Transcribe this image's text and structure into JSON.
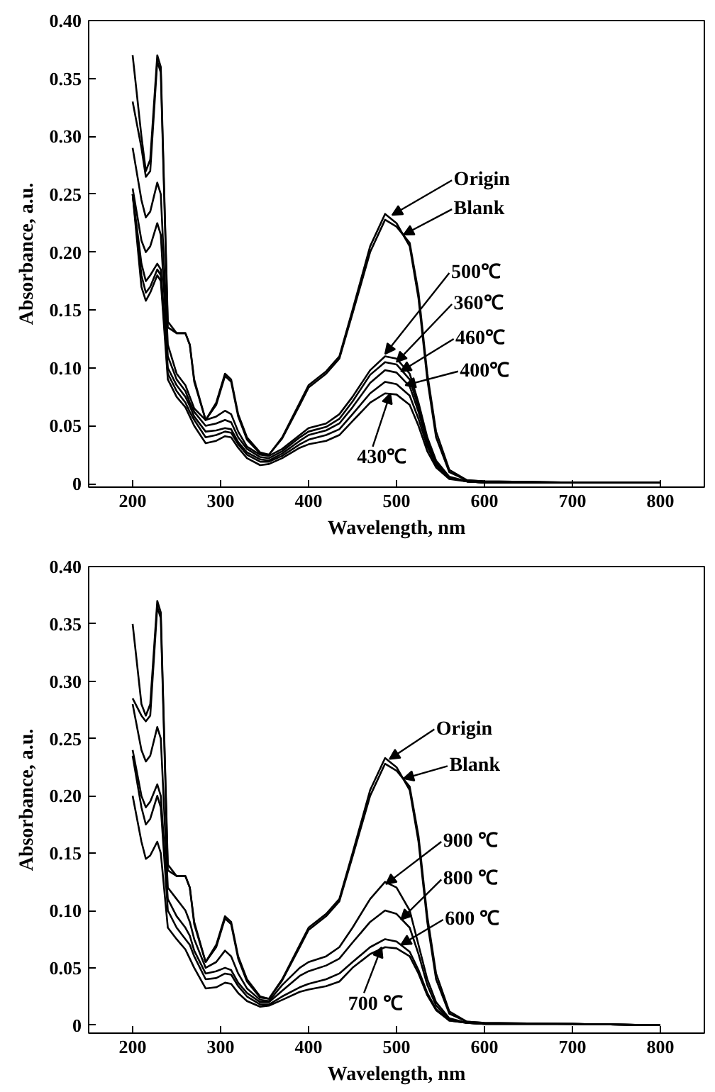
{
  "chart_data": [
    {
      "type": "line",
      "xlabel": "Wavelength, nm",
      "ylabel": "Absorbance, a.u.",
      "xlim": [
        150,
        850
      ],
      "ylim": [
        -0.003,
        0.4
      ],
      "xticks": [
        200,
        300,
        400,
        500,
        600,
        700,
        800
      ],
      "yticks": [
        0,
        0.05,
        {
          "value": 0.1,
          "label": "0.10"
        },
        0.15,
        {
          "value": 0.2,
          "label": "0.20"
        },
        0.25,
        {
          "value": 0.3,
          "label": "0.30"
        },
        0.35,
        {
          "value": 0.4,
          "label": "0.40"
        }
      ],
      "grid": false,
      "marker": "none",
      "line_style": "solid",
      "x": [
        200,
        210,
        215,
        220,
        228,
        232,
        240,
        250,
        260,
        265,
        270,
        283,
        295,
        305,
        312,
        320,
        330,
        345,
        355,
        370,
        390,
        400,
        420,
        435,
        450,
        470,
        487,
        500,
        515,
        525,
        535,
        545,
        560,
        580,
        600,
        700,
        800
      ],
      "series": [
        {
          "color": "#000000",
          "values": [
            0.37,
            0.3,
            0.27,
            0.28,
            0.37,
            0.36,
            0.14,
            0.13,
            0.13,
            0.12,
            0.09,
            0.055,
            0.07,
            0.095,
            0.09,
            0.06,
            0.04,
            0.027,
            0.025,
            0.04,
            0.07,
            0.085,
            0.097,
            0.11,
            0.15,
            0.205,
            0.233,
            0.225,
            0.205,
            0.16,
            0.09,
            0.04,
            0.01,
            0.003,
            0.002,
            0.001,
            0.001
          ]
        },
        {
          "color": "#000000",
          "values": [
            0.33,
            0.29,
            0.265,
            0.27,
            0.365,
            0.355,
            0.135,
            0.13,
            0.13,
            0.12,
            0.088,
            0.055,
            0.068,
            0.093,
            0.088,
            0.058,
            0.038,
            0.026,
            0.025,
            0.039,
            0.068,
            0.083,
            0.095,
            0.108,
            0.147,
            0.2,
            0.228,
            0.222,
            0.208,
            0.165,
            0.095,
            0.045,
            0.012,
            0.003,
            0.002,
            0.001,
            0.001
          ]
        },
        {
          "color": "#000000",
          "values": [
            0.29,
            0.245,
            0.23,
            0.235,
            0.26,
            0.25,
            0.12,
            0.095,
            0.085,
            0.075,
            0.065,
            0.055,
            0.058,
            0.063,
            0.06,
            0.045,
            0.032,
            0.025,
            0.024,
            0.03,
            0.042,
            0.048,
            0.052,
            0.06,
            0.075,
            0.098,
            0.11,
            0.108,
            0.095,
            0.07,
            0.04,
            0.02,
            0.006,
            0.002,
            0.001,
            0.001,
            0.001
          ]
        },
        {
          "color": "#000000",
          "values": [
            0.255,
            0.21,
            0.2,
            0.205,
            0.225,
            0.215,
            0.11,
            0.09,
            0.08,
            0.07,
            0.062,
            0.05,
            0.052,
            0.055,
            0.053,
            0.04,
            0.03,
            0.023,
            0.022,
            0.028,
            0.04,
            0.045,
            0.049,
            0.056,
            0.071,
            0.094,
            0.105,
            0.103,
            0.09,
            0.066,
            0.037,
            0.018,
            0.005,
            0.002,
            0.001,
            0.001,
            0.001
          ]
        },
        {
          "color": "#000000",
          "values": [
            0.25,
            0.19,
            0.175,
            0.18,
            0.19,
            0.185,
            0.1,
            0.085,
            0.075,
            0.067,
            0.058,
            0.045,
            0.046,
            0.048,
            0.047,
            0.036,
            0.027,
            0.021,
            0.02,
            0.026,
            0.037,
            0.042,
            0.046,
            0.052,
            0.066,
            0.087,
            0.098,
            0.096,
            0.084,
            0.062,
            0.035,
            0.017,
            0.005,
            0.002,
            0.001,
            0.001,
            0.001
          ]
        },
        {
          "color": "#000000",
          "values": [
            0.25,
            0.18,
            0.165,
            0.17,
            0.185,
            0.18,
            0.095,
            0.08,
            0.07,
            0.062,
            0.055,
            0.04,
            0.042,
            0.045,
            0.044,
            0.034,
            0.025,
            0.019,
            0.019,
            0.024,
            0.034,
            0.038,
            0.042,
            0.047,
            0.06,
            0.078,
            0.088,
            0.086,
            0.076,
            0.056,
            0.032,
            0.016,
            0.005,
            0.002,
            0.001,
            0.001,
            0.001
          ]
        },
        {
          "color": "#000000",
          "values": [
            0.25,
            0.17,
            0.158,
            0.165,
            0.18,
            0.175,
            0.09,
            0.075,
            0.066,
            0.058,
            0.05,
            0.035,
            0.037,
            0.041,
            0.04,
            0.031,
            0.022,
            0.016,
            0.017,
            0.022,
            0.031,
            0.034,
            0.037,
            0.042,
            0.054,
            0.07,
            0.078,
            0.077,
            0.068,
            0.05,
            0.028,
            0.014,
            0.004,
            0.002,
            0.001,
            0.001,
            0.001
          ]
        }
      ],
      "annotations": [
        {
          "text": "Origin",
          "x": 495,
          "y": 0.232
        },
        {
          "text": "Blank",
          "x": 508,
          "y": 0.215
        },
        {
          "text": "500℃",
          "x": 487,
          "y": 0.112
        },
        {
          "text": "360℃",
          "x": 500,
          "y": 0.105
        },
        {
          "text": "460℃",
          "x": 505,
          "y": 0.097
        },
        {
          "text": "400℃",
          "x": 510,
          "y": 0.085
        },
        {
          "text": "430℃",
          "x": 493,
          "y": 0.078
        }
      ]
    },
    {
      "type": "line",
      "xlabel": "Wavelength, nm",
      "ylabel": "Absorbance, a.u.",
      "xlim": [
        150,
        850
      ],
      "ylim": [
        -0.007,
        0.4
      ],
      "xticks": [
        200,
        300,
        400,
        500,
        600,
        700,
        800
      ],
      "yticks": [
        0,
        0.05,
        {
          "value": 0.1,
          "label": "0.10"
        },
        0.15,
        {
          "value": 0.2,
          "label": "0.20"
        },
        0.25,
        {
          "value": 0.3,
          "label": "0.30"
        },
        0.35,
        {
          "value": 0.4,
          "label": "0.40"
        }
      ],
      "grid": false,
      "marker": "none",
      "line_style": "solid",
      "x": [
        200,
        210,
        215,
        220,
        228,
        232,
        240,
        250,
        260,
        265,
        270,
        283,
        295,
        305,
        312,
        320,
        330,
        345,
        355,
        370,
        390,
        400,
        420,
        435,
        450,
        470,
        487,
        500,
        515,
        525,
        535,
        545,
        560,
        580,
        600,
        700,
        800
      ],
      "series": [
        {
          "color": "#000000",
          "values": [
            0.35,
            0.28,
            0.27,
            0.28,
            0.37,
            0.36,
            0.14,
            0.13,
            0.13,
            0.12,
            0.09,
            0.055,
            0.07,
            0.095,
            0.09,
            0.06,
            0.04,
            0.025,
            0.023,
            0.04,
            0.07,
            0.085,
            0.097,
            0.11,
            0.15,
            0.205,
            0.233,
            0.225,
            0.205,
            0.16,
            0.09,
            0.04,
            0.01,
            0.003,
            0.002,
            0.001,
            0.0
          ]
        },
        {
          "color": "#000000",
          "values": [
            0.285,
            0.27,
            0.265,
            0.27,
            0.365,
            0.355,
            0.135,
            0.13,
            0.13,
            0.12,
            0.088,
            0.055,
            0.068,
            0.093,
            0.088,
            0.058,
            0.038,
            0.024,
            0.023,
            0.039,
            0.068,
            0.083,
            0.095,
            0.108,
            0.147,
            0.2,
            0.228,
            0.222,
            0.208,
            0.165,
            0.095,
            0.045,
            0.012,
            0.003,
            0.002,
            0.001,
            0.0
          ]
        },
        {
          "color": "#000000",
          "values": [
            0.28,
            0.24,
            0.23,
            0.235,
            0.26,
            0.25,
            0.12,
            0.11,
            0.1,
            0.09,
            0.075,
            0.05,
            0.055,
            0.065,
            0.06,
            0.045,
            0.032,
            0.022,
            0.021,
            0.035,
            0.05,
            0.055,
            0.06,
            0.068,
            0.085,
            0.11,
            0.125,
            0.12,
            0.1,
            0.07,
            0.04,
            0.02,
            0.006,
            0.002,
            0.001,
            0.001,
            0.0
          ]
        },
        {
          "color": "#000000",
          "values": [
            0.24,
            0.2,
            0.19,
            0.195,
            0.21,
            0.2,
            0.11,
            0.095,
            0.085,
            0.078,
            0.065,
            0.045,
            0.047,
            0.05,
            0.048,
            0.037,
            0.028,
            0.02,
            0.02,
            0.03,
            0.043,
            0.047,
            0.052,
            0.058,
            0.072,
            0.09,
            0.1,
            0.097,
            0.085,
            0.062,
            0.035,
            0.017,
            0.005,
            0.002,
            0.001,
            0.001,
            0.0
          ]
        },
        {
          "color": "#000000",
          "values": [
            0.235,
            0.19,
            0.175,
            0.18,
            0.2,
            0.19,
            0.1,
            0.085,
            0.075,
            0.07,
            0.06,
            0.04,
            0.041,
            0.045,
            0.044,
            0.034,
            0.025,
            0.018,
            0.018,
            0.025,
            0.033,
            0.036,
            0.04,
            0.045,
            0.055,
            0.068,
            0.075,
            0.073,
            0.064,
            0.048,
            0.028,
            0.014,
            0.004,
            0.002,
            0.001,
            0.001,
            0.0
          ]
        },
        {
          "color": "#000000",
          "values": [
            0.2,
            0.16,
            0.145,
            0.148,
            0.16,
            0.15,
            0.085,
            0.075,
            0.066,
            0.058,
            0.05,
            0.032,
            0.033,
            0.037,
            0.036,
            0.028,
            0.021,
            0.016,
            0.017,
            0.022,
            0.029,
            0.031,
            0.034,
            0.038,
            0.05,
            0.062,
            0.068,
            0.067,
            0.06,
            0.045,
            0.026,
            0.013,
            0.004,
            0.002,
            0.001,
            0.001,
            0.0
          ]
        }
      ],
      "annotations": [
        {
          "text": "Origin",
          "x": 492,
          "y": 0.232
        },
        {
          "text": "Blank",
          "x": 508,
          "y": 0.215
        },
        {
          "text": "900 ℃",
          "x": 488,
          "y": 0.123
        },
        {
          "text": "800 ℃",
          "x": 505,
          "y": 0.092
        },
        {
          "text": "600 ℃",
          "x": 505,
          "y": 0.07
        },
        {
          "text": "700 ℃",
          "x": 483,
          "y": 0.068
        }
      ]
    }
  ]
}
